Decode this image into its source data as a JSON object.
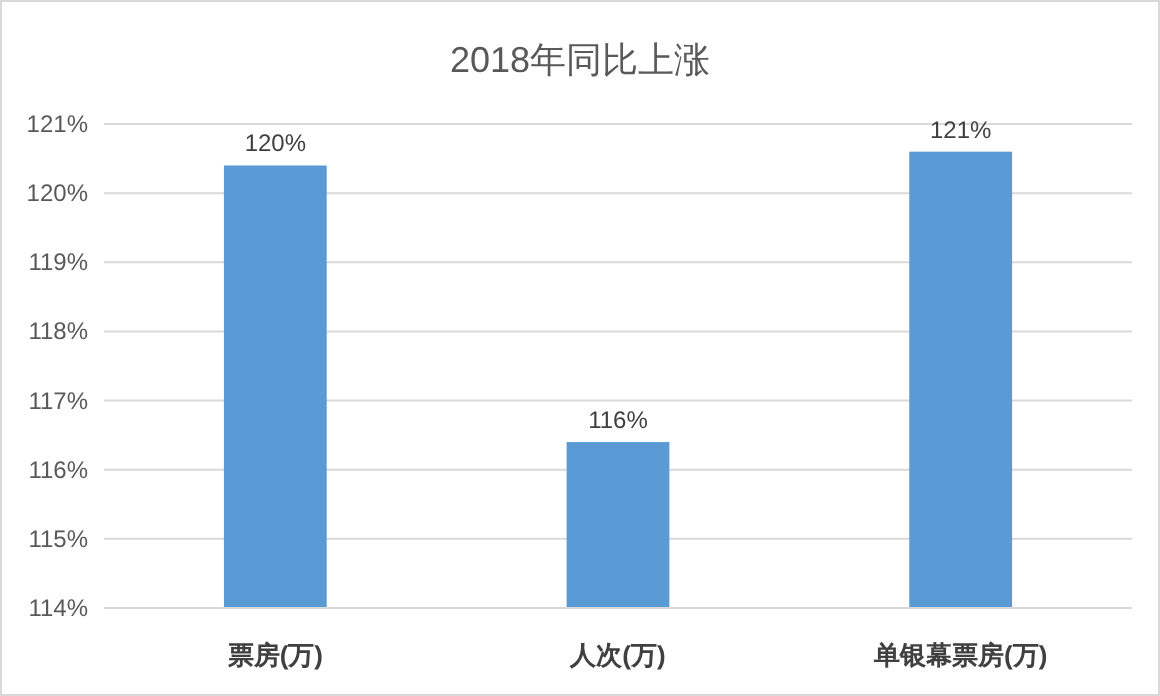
{
  "chart_data": {
    "type": "bar",
    "title": "2018年同比上涨",
    "categories": [
      "票房(万)",
      "人次(万)",
      "单银幕票房(万)"
    ],
    "values": [
      120.4,
      116.4,
      120.6
    ],
    "value_labels": [
      "120%",
      "116%",
      "121%"
    ],
    "color": "#5b9bd5",
    "ylim": [
      114,
      121
    ],
    "yticks": [
      {
        "value": 114,
        "label": "114%"
      },
      {
        "value": 115,
        "label": "115%"
      },
      {
        "value": 116,
        "label": "116%"
      },
      {
        "value": 117,
        "label": "117%"
      },
      {
        "value": 118,
        "label": "118%"
      },
      {
        "value": 119,
        "label": "119%"
      },
      {
        "value": 120,
        "label": "120%"
      },
      {
        "value": 121,
        "label": "121%"
      }
    ],
    "grid": "y"
  }
}
